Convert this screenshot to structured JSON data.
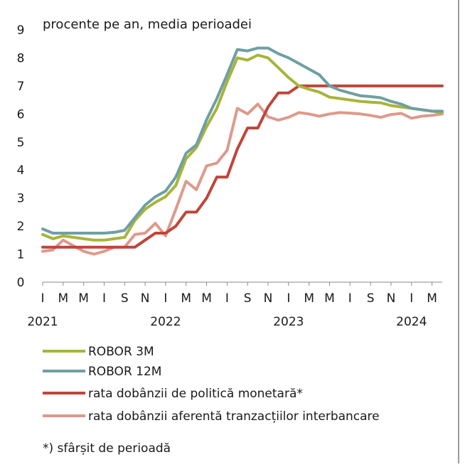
{
  "chart_data": {
    "type": "line",
    "subtitle": "procente pe an, media perioadei",
    "ylim": [
      0,
      9
    ],
    "y_ticks": [
      "0",
      "1",
      "2",
      "3",
      "4",
      "5",
      "6",
      "7",
      "8",
      "9"
    ],
    "x_month_labels": [
      "I",
      "M",
      "M",
      "I",
      "S",
      "N",
      "I",
      "M",
      "M",
      "I",
      "S",
      "N",
      "I",
      "M",
      "M",
      "I",
      "S",
      "N",
      "I",
      "M"
    ],
    "years": [
      {
        "label": "2021",
        "index": 0
      },
      {
        "label": "2022",
        "index": 12
      },
      {
        "label": "2023",
        "index": 24
      },
      {
        "label": "2024",
        "index": 36
      }
    ],
    "x_count": 40,
    "series": [
      {
        "name": "ROBOR 3M",
        "color": "#a8b43a",
        "values": [
          1.7,
          1.55,
          1.65,
          1.6,
          1.55,
          1.5,
          1.5,
          1.55,
          1.6,
          2.2,
          2.6,
          2.85,
          3.05,
          3.45,
          4.4,
          4.8,
          5.55,
          6.2,
          7.15,
          8.0,
          7.92,
          8.1,
          8.0,
          7.65,
          7.3,
          7.0,
          6.88,
          6.78,
          6.6,
          6.55,
          6.5,
          6.45,
          6.42,
          6.4,
          6.3,
          6.25,
          6.2,
          6.15,
          6.1,
          6.05
        ]
      },
      {
        "name": "ROBOR 12M",
        "color": "#6f9fa3",
        "values": [
          1.9,
          1.75,
          1.75,
          1.75,
          1.75,
          1.75,
          1.75,
          1.78,
          1.85,
          2.3,
          2.75,
          3.05,
          3.25,
          3.75,
          4.6,
          4.9,
          5.8,
          6.55,
          7.4,
          8.3,
          8.25,
          8.35,
          8.35,
          8.15,
          8.0,
          7.8,
          7.6,
          7.4,
          7.0,
          6.85,
          6.75,
          6.65,
          6.62,
          6.58,
          6.45,
          6.35,
          6.2,
          6.15,
          6.1,
          6.1
        ]
      },
      {
        "name": "rata dobânzii de politică monetară*",
        "color": "#c0453a",
        "values": [
          1.25,
          1.25,
          1.25,
          1.25,
          1.25,
          1.25,
          1.25,
          1.25,
          1.25,
          1.25,
          1.5,
          1.75,
          1.75,
          2.0,
          2.5,
          2.5,
          3.0,
          3.75,
          3.75,
          4.75,
          5.5,
          5.5,
          6.25,
          6.75,
          6.75,
          7.0,
          7.0,
          7.0,
          7.0,
          7.0,
          7.0,
          7.0,
          7.0,
          7.0,
          7.0,
          7.0,
          7.0,
          7.0,
          7.0,
          7.0
        ]
      },
      {
        "name": "rata dobânzii aferentă tranzacțiilor interbancare",
        "color": "#dd9a8c",
        "values": [
          1.1,
          1.15,
          1.5,
          1.3,
          1.1,
          1.0,
          1.1,
          1.25,
          1.25,
          1.7,
          1.75,
          2.1,
          1.65,
          2.6,
          3.6,
          3.3,
          4.15,
          4.25,
          4.7,
          6.2,
          6.0,
          6.35,
          5.9,
          5.78,
          5.88,
          6.05,
          6.0,
          5.92,
          6.0,
          6.05,
          6.03,
          6.0,
          5.95,
          5.88,
          5.98,
          6.02,
          5.85,
          5.92,
          5.95,
          6.0
        ]
      }
    ],
    "footnote": "*) sfârșit de perioadă"
  }
}
